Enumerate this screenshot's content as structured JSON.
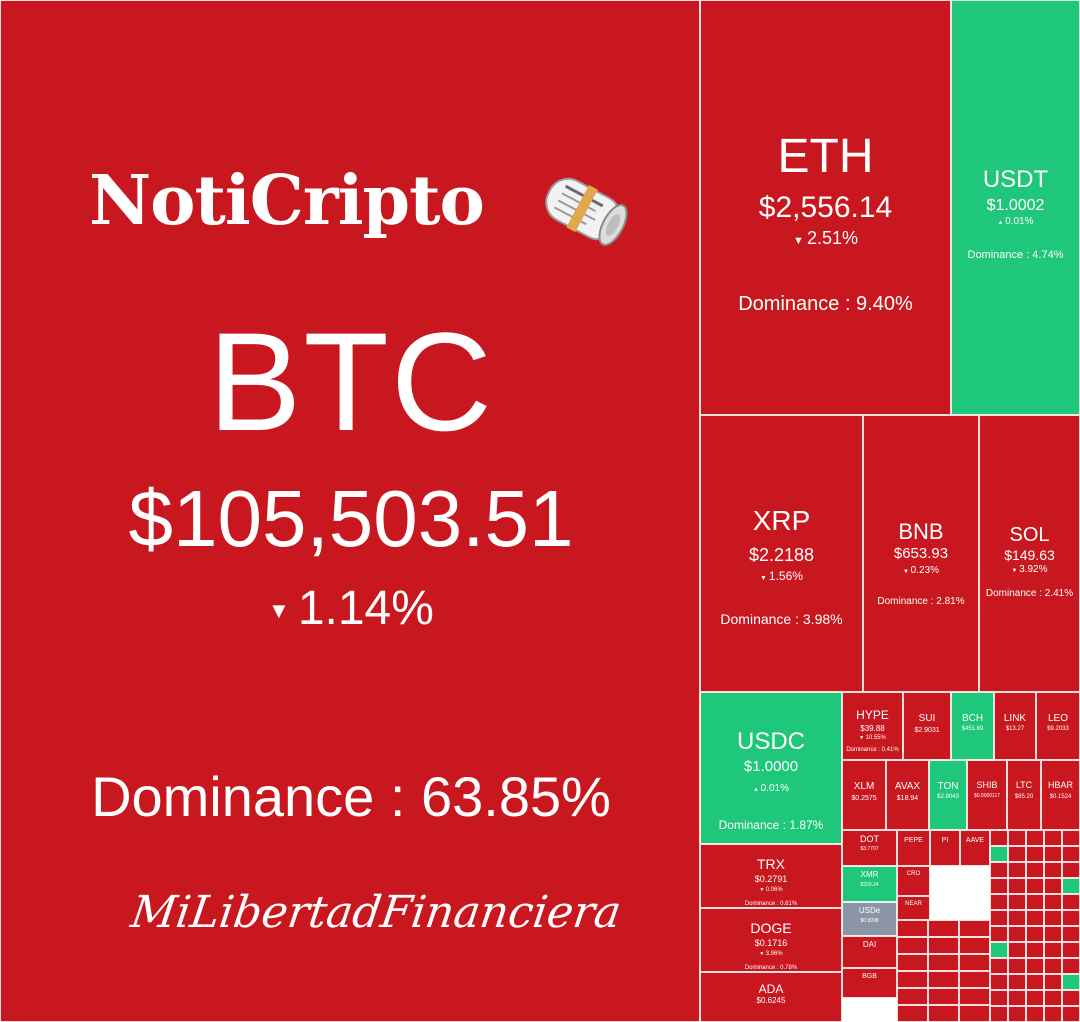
{
  "brand": {
    "title": "NotiCripto",
    "icon": "rolled-newspaper-icon",
    "signature": "MiLibertadFinanciera"
  },
  "colors": {
    "down": "#c8171f",
    "up": "#1fc77a",
    "flat": "#8c95a6",
    "border": "#ffffff",
    "text": "#ffffff"
  },
  "chart_data": {
    "type": "treemap",
    "title": "",
    "tiles": [
      {
        "symbol": "BTC",
        "price": "$105,503.51",
        "change": "1.14%",
        "direction": "down",
        "dominance_label": "Dominance : 63.85%",
        "dominance": 63.85
      },
      {
        "symbol": "ETH",
        "price": "$2,556.14",
        "change": "2.51%",
        "direction": "down",
        "dominance_label": "Dominance : 9.40%",
        "dominance": 9.4
      },
      {
        "symbol": "USDT",
        "price": "$1.0002",
        "change": "0.01%",
        "direction": "up",
        "dominance_label": "Dominance : 4.74%",
        "dominance": 4.74
      },
      {
        "symbol": "XRP",
        "price": "$2.2188",
        "change": "1.56%",
        "direction": "down",
        "dominance_label": "Dominance : 3.98%",
        "dominance": 3.98
      },
      {
        "symbol": "BNB",
        "price": "$653.93",
        "change": "0.23%",
        "direction": "down",
        "dominance_label": "Dominance : 2.81%",
        "dominance": 2.81
      },
      {
        "symbol": "SOL",
        "price": "$149.63",
        "change": "3.92%",
        "direction": "down",
        "dominance_label": "Dominance : 2.41%",
        "dominance": 2.41
      },
      {
        "symbol": "USDC",
        "price": "$1.0000",
        "change": "0.01%",
        "direction": "up",
        "dominance_label": "Dominance : 1.87%",
        "dominance": 1.87
      },
      {
        "symbol": "HYPE",
        "price": "$39.88",
        "change": "10.55%",
        "direction": "down",
        "dominance_label": "Dominance : 0.41%",
        "dominance": 0.41
      },
      {
        "symbol": "SUI",
        "price": "$2.9031",
        "change": "",
        "direction": "down",
        "dominance_label": "",
        "dominance": null
      },
      {
        "symbol": "BCH",
        "price": "$451.69",
        "change": "",
        "direction": "up",
        "dominance_label": "",
        "dominance": null
      },
      {
        "symbol": "LINK",
        "price": "$13.27",
        "change": "",
        "direction": "down",
        "dominance_label": "",
        "dominance": null
      },
      {
        "symbol": "LEO",
        "price": "$9.2033",
        "change": "",
        "direction": "down",
        "dominance_label": "",
        "dominance": null
      },
      {
        "symbol": "XLM",
        "price": "$0.2575",
        "change": "",
        "direction": "down",
        "dominance_label": "",
        "dominance": null
      },
      {
        "symbol": "AVAX",
        "price": "$18.94",
        "change": "",
        "direction": "down",
        "dominance_label": "",
        "dominance": null
      },
      {
        "symbol": "TON",
        "price": "$2.9043",
        "change": "",
        "direction": "up",
        "dominance_label": "",
        "dominance": null
      },
      {
        "symbol": "SHIB",
        "price": "$0.0000117",
        "change": "",
        "direction": "down",
        "dominance_label": "",
        "dominance": null
      },
      {
        "symbol": "LTC",
        "price": "$85.20",
        "change": "",
        "direction": "down",
        "dominance_label": "",
        "dominance": null
      },
      {
        "symbol": "HBAR",
        "price": "$0.1524",
        "change": "",
        "direction": "down",
        "dominance_label": "",
        "dominance": null
      },
      {
        "symbol": "TRX",
        "price": "$0.2791",
        "change": "0.06%",
        "direction": "down",
        "dominance_label": "Dominance : 0.81%",
        "dominance": 0.81
      },
      {
        "symbol": "DOGE",
        "price": "$0.1716",
        "change": "3.96%",
        "direction": "down",
        "dominance_label": "Dominance : 0.78%",
        "dominance": 0.78
      },
      {
        "symbol": "ADA",
        "price": "$0.6245",
        "change": "",
        "direction": "down",
        "dominance_label": "",
        "dominance": null
      },
      {
        "symbol": "DOT",
        "price": "$3.7707",
        "change": "",
        "direction": "down",
        "dominance_label": "",
        "dominance": null
      },
      {
        "symbol": "PEPE",
        "price": "",
        "change": "",
        "direction": "down",
        "dominance_label": "",
        "dominance": null
      },
      {
        "symbol": "PI",
        "price": "",
        "change": "",
        "direction": "down",
        "dominance_label": "",
        "dominance": null
      },
      {
        "symbol": "AAVE",
        "price": "",
        "change": "",
        "direction": "down",
        "dominance_label": "",
        "dominance": null
      },
      {
        "symbol": "XMR",
        "price": "$320.24",
        "change": "",
        "direction": "up",
        "dominance_label": "",
        "dominance": null
      },
      {
        "symbol": "USDe",
        "price": "$0.9998",
        "change": "",
        "direction": "flat",
        "dominance_label": "",
        "dominance": null
      },
      {
        "symbol": "NEAR",
        "price": "",
        "change": "",
        "direction": "down",
        "dominance_label": "",
        "dominance": null
      },
      {
        "symbol": "DAI",
        "price": "",
        "change": "",
        "direction": "down",
        "dominance_label": "",
        "dominance": null
      },
      {
        "symbol": "BGB",
        "price": "",
        "change": "",
        "direction": "down",
        "dominance_label": "",
        "dominance": null
      },
      {
        "symbol": "CRO",
        "price": "",
        "change": "",
        "direction": "down",
        "dominance_label": "",
        "dominance": null
      }
    ]
  }
}
